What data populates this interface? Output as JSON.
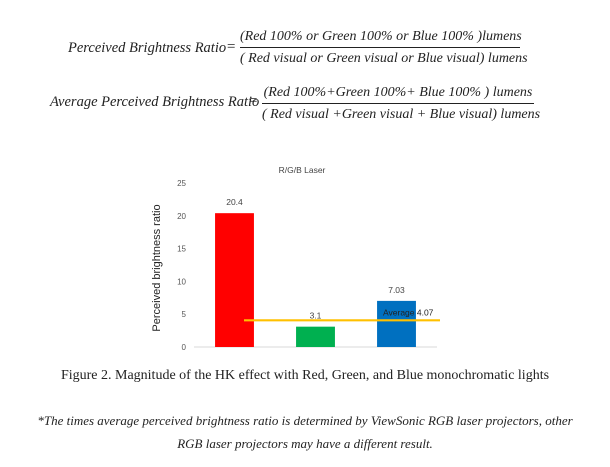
{
  "formulas": {
    "f1": {
      "label": "Perceived Brightness Ratio",
      "eq": "=",
      "numerator": "(Red 100% or Green 100% or Blue 100% )lumens",
      "denominator": "( Red visual or Green visual or Blue visual) lumens"
    },
    "f2": {
      "label": "Average Perceived Brightness Ratio",
      "eq": "=",
      "numerator": "(Red 100%+Green 100%+ Blue 100% ) lumens",
      "denominator": "( Red visual +Green visual + Blue visual) lumens"
    }
  },
  "chart_data": {
    "type": "bar",
    "title": "R/G/B Laser",
    "ylabel": "Perceived brightness ratio",
    "xlabel": "",
    "ylim": [
      0,
      25
    ],
    "yticks": [
      0,
      5,
      10,
      15,
      20,
      25
    ],
    "categories": [
      "Red",
      "Green",
      "Blue"
    ],
    "values": [
      20.4,
      3.1,
      7.03
    ],
    "value_labels": [
      "20.4",
      "3.1",
      "7.03"
    ],
    "bar_colors": [
      "#ff0000",
      "#00b050",
      "#0070c0"
    ],
    "average": {
      "value": 4.07,
      "label": "Average 4.07",
      "color": "#ffc000"
    },
    "grid": false,
    "legend": "none"
  },
  "caption": "Figure 2. Magnitude of the HK effect with Red, Green, and Blue monochromatic lights",
  "note": {
    "line1": "*The times average perceived brightness ratio is determined by ViewSonic RGB laser projectors, other",
    "line2": "RGB laser projectors may have a different result."
  }
}
